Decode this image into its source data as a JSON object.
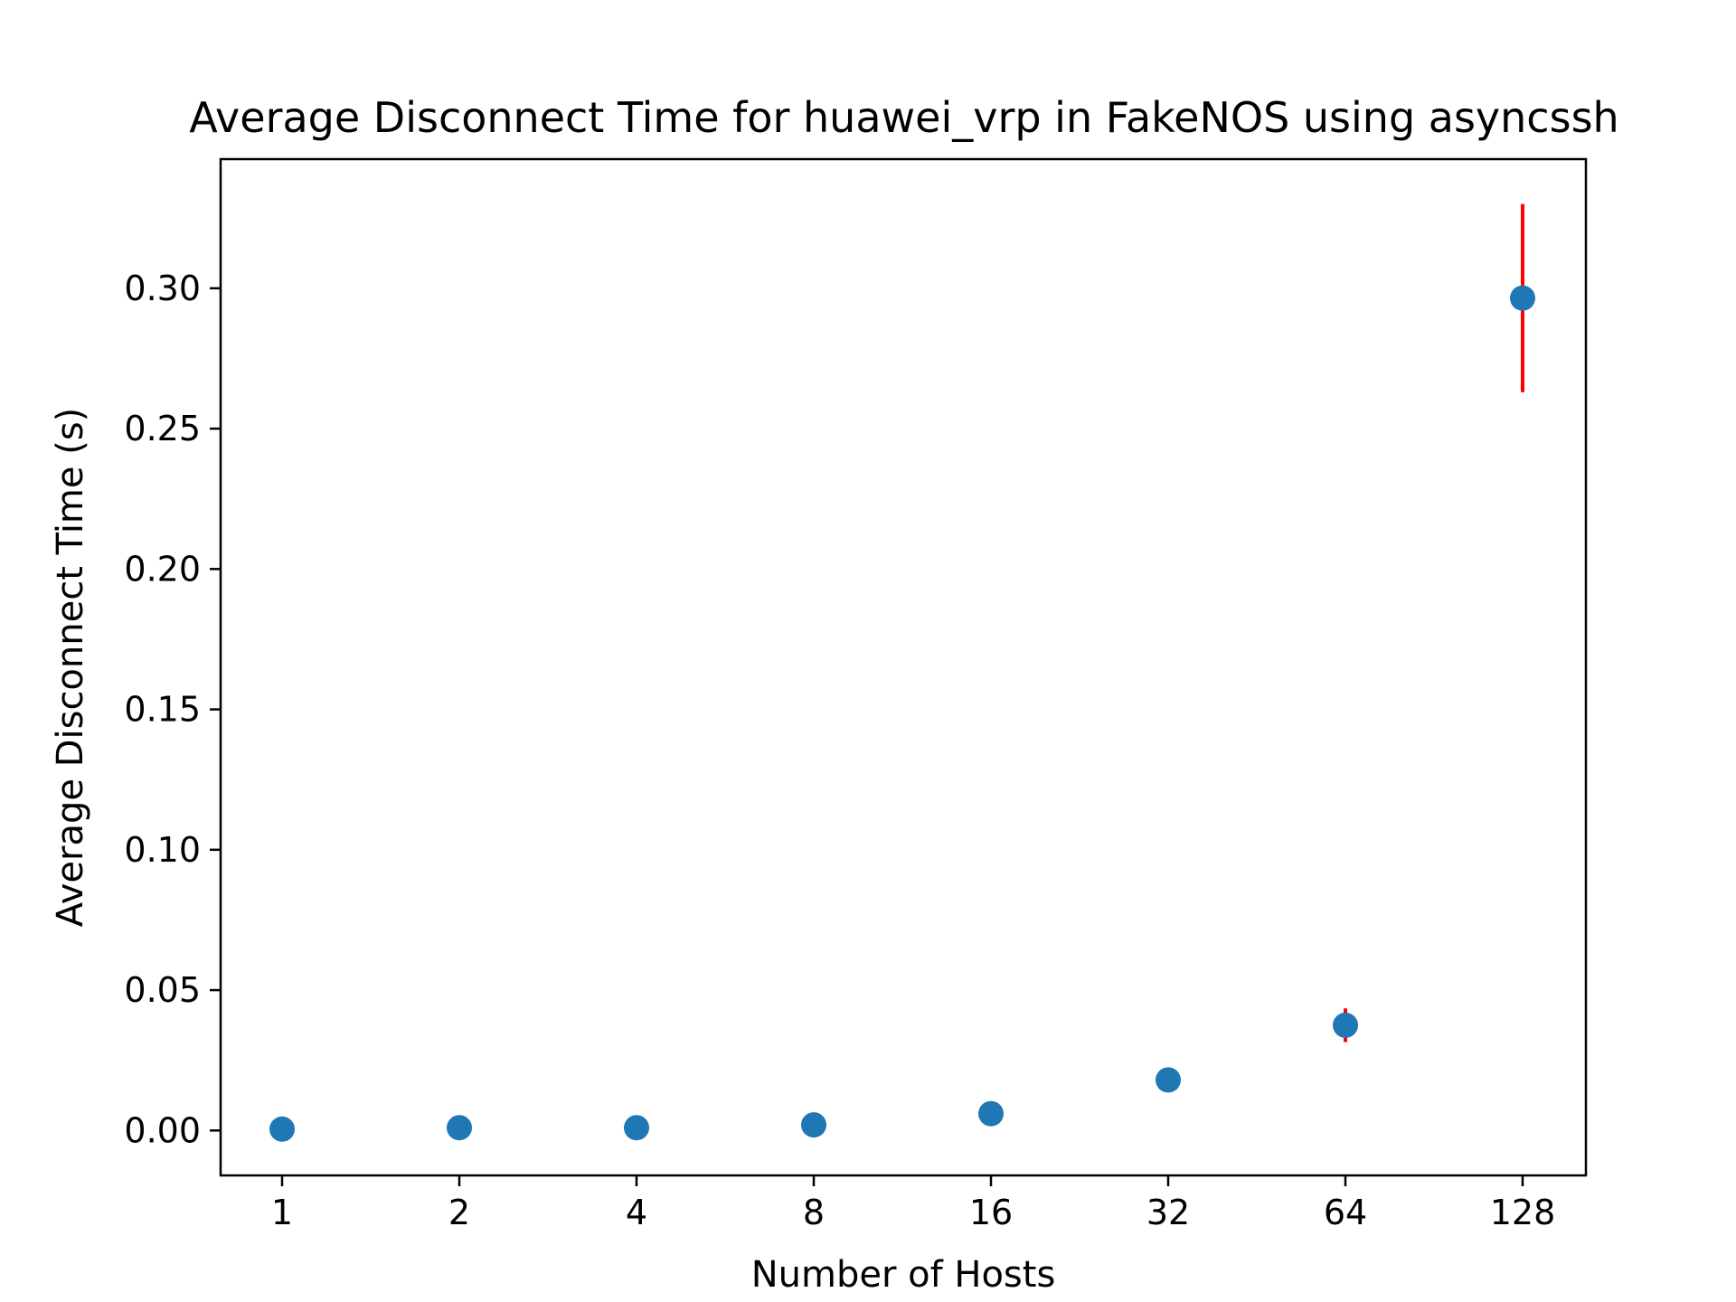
{
  "colors": {
    "point": "#1f77b4",
    "errorbar": "#ff0000",
    "axes": "#000000",
    "background": "#ffffff"
  },
  "chart_data": {
    "type": "scatter",
    "title": "Average Disconnect Time for huawei_vrp in FakeNOS using asyncssh",
    "xlabel": "Number of Hosts",
    "ylabel": "Average Disconnect Time (s)",
    "x_scale": "log2",
    "x_ticks": [
      "1",
      "2",
      "4",
      "8",
      "16",
      "32",
      "64",
      "128"
    ],
    "y_ticks": [
      "0.00",
      "0.05",
      "0.10",
      "0.15",
      "0.20",
      "0.25",
      "0.30"
    ],
    "ylim": [
      -0.016,
      0.346
    ],
    "grid": false,
    "legend": "none",
    "points": [
      {
        "x": 1,
        "y": 0.0005,
        "err": 0.0
      },
      {
        "x": 2,
        "y": 0.001,
        "err": 0.0
      },
      {
        "x": 4,
        "y": 0.001,
        "err": 0.0
      },
      {
        "x": 8,
        "y": 0.002,
        "err": 0.0
      },
      {
        "x": 16,
        "y": 0.006,
        "err": 0.0
      },
      {
        "x": 32,
        "y": 0.018,
        "err": 0.0
      },
      {
        "x": 64,
        "y": 0.0375,
        "err": 0.006
      },
      {
        "x": 128,
        "y": 0.2965,
        "err": 0.0335
      }
    ]
  }
}
